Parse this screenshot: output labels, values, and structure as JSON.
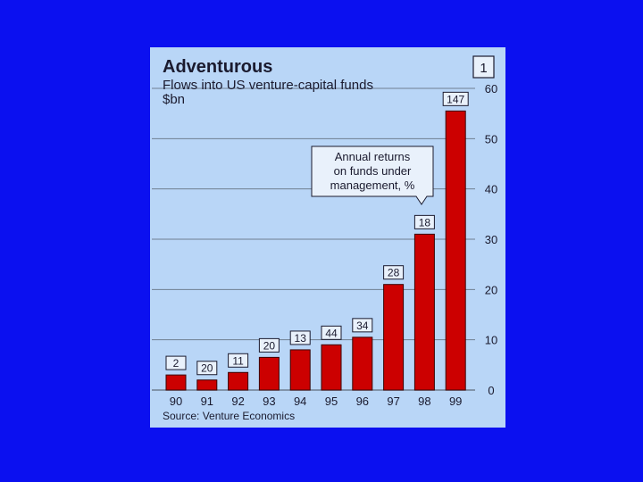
{
  "chart_data": {
    "type": "bar",
    "title": "Adventurous",
    "subtitle": "Flows into US venture-capital funds",
    "unit_label": "$bn",
    "source": "Source: Venture Economics",
    "chart_number": "1",
    "categories": [
      "90",
      "91",
      "92",
      "93",
      "94",
      "95",
      "96",
      "97",
      "98",
      "99"
    ],
    "values": [
      3,
      2,
      3.5,
      6.5,
      8,
      9,
      10.5,
      21,
      31,
      55.5
    ],
    "annual_returns": [
      "2",
      "20",
      "11",
      "20",
      "13",
      "44",
      "34",
      "28",
      "18",
      "147"
    ],
    "annotation": [
      "Annual returns",
      "on funds under",
      "management, %"
    ],
    "ylim": [
      0,
      60
    ],
    "yticks": [
      0,
      10,
      20,
      30,
      40,
      50,
      60
    ],
    "y_axis_side": "right",
    "grid": true,
    "colors": {
      "bar": "#cc0000",
      "bar_outline": "#3a0000",
      "plot_background": "#b9d6f7",
      "gridline": "#6f7f90",
      "page_background": "#0b10f0"
    }
  }
}
